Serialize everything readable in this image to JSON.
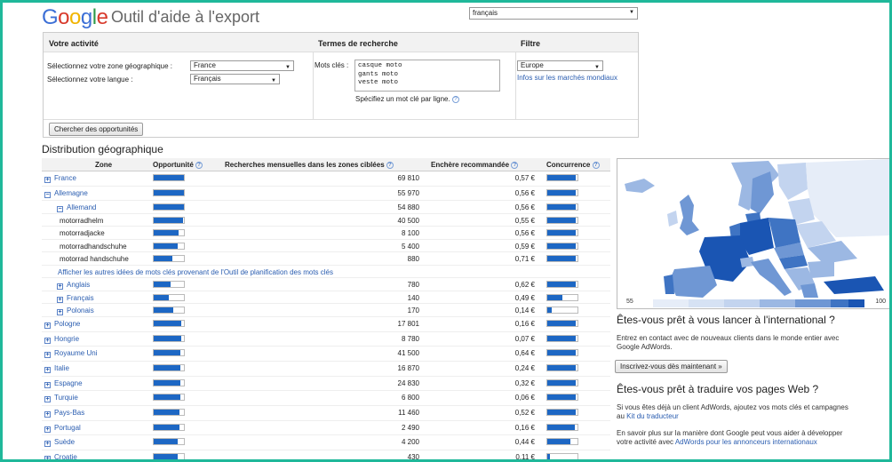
{
  "header": {
    "logo": {
      "G": "G",
      "o1": "o",
      "o2": "o",
      "g": "g",
      "l": "l",
      "e": "e"
    },
    "app_title": "Outil d'aide à l'export",
    "language_select": "français"
  },
  "form": {
    "col_activity": "Votre activité",
    "col_terms": "Termes de recherche",
    "col_filter": "Filtre",
    "zone_label": "Sélectionnez votre zone géographique :",
    "zone_value": "France",
    "lang_label": "Sélectionnez votre langue :",
    "lang_value": "Français",
    "keywords_label": "Mots clés :",
    "keywords": [
      "casque moto",
      "gants moto",
      "veste moto"
    ],
    "keywords_hint": "Spécifiez un mot clé par ligne.",
    "filter_value": "Europe",
    "filter_link": "Infos sur les marchés mondiaux",
    "search_button": "Chercher des opportunités"
  },
  "section_title": "Distribution géographique",
  "table": {
    "headers": {
      "zone": "Zone",
      "opportunity": "Opportunité",
      "searches": "Recherches mensuelles dans les zones ciblées",
      "bid": "Enchère recommandée",
      "competition": "Concurrence"
    },
    "more_ideas_link": "Afficher les autres idées de mots clés provenant de l'Outil de planification des mots clés",
    "rows": [
      {
        "type": "country",
        "zone": "France",
        "toggle": "+",
        "opp": 1.0,
        "searches": "69 810",
        "bid": "0,57 €",
        "comp": 0.95
      },
      {
        "type": "country",
        "zone": "Allemagne",
        "toggle": "−",
        "opp": 1.0,
        "searches": "55 970",
        "bid": "0,56 €",
        "comp": 0.95
      },
      {
        "type": "language",
        "zone": "Allemand",
        "toggle": "−",
        "opp": 1.0,
        "searches": "54 880",
        "bid": "0,56 €",
        "comp": 0.95
      },
      {
        "type": "keyword",
        "zone": "motorradhelm",
        "opp": 0.97,
        "searches": "40 500",
        "bid": "0,55 €",
        "comp": 0.95
      },
      {
        "type": "keyword",
        "zone": "motorradjacke",
        "opp": 0.82,
        "searches": "8 100",
        "bid": "0,56 €",
        "comp": 0.95
      },
      {
        "type": "keyword",
        "zone": "motorradhandschuhe",
        "opp": 0.78,
        "searches": "5 400",
        "bid": "0,59 €",
        "comp": 0.95
      },
      {
        "type": "keyword",
        "zone": "motorrad handschuhe",
        "opp": 0.62,
        "searches": "880",
        "bid": "0,71 €",
        "comp": 0.95
      },
      {
        "type": "link"
      },
      {
        "type": "language",
        "zone": "Anglais",
        "toggle": "+",
        "opp": 0.55,
        "searches": "780",
        "bid": "0,62 €",
        "comp": 0.95
      },
      {
        "type": "language",
        "zone": "Français",
        "toggle": "+",
        "opp": 0.5,
        "searches": "140",
        "bid": "0,49 €",
        "comp": 0.5
      },
      {
        "type": "language",
        "zone": "Polonais",
        "toggle": "+",
        "opp": 0.65,
        "searches": "170",
        "bid": "0,14 €",
        "comp": 0.15
      },
      {
        "type": "country",
        "zone": "Pologne",
        "toggle": "+",
        "opp": 0.92,
        "searches": "17 801",
        "bid": "0,16 €",
        "comp": 0.95
      },
      {
        "type": "country",
        "zone": "Hongrie",
        "toggle": "+",
        "opp": 0.92,
        "searches": "8 780",
        "bid": "0,07 €",
        "comp": 0.95
      },
      {
        "type": "country",
        "zone": "Royaume Uni",
        "toggle": "+",
        "opp": 0.88,
        "searches": "41 500",
        "bid": "0,64 €",
        "comp": 0.95
      },
      {
        "type": "country",
        "zone": "Italie",
        "toggle": "+",
        "opp": 0.88,
        "searches": "16 870",
        "bid": "0,24 €",
        "comp": 0.95
      },
      {
        "type": "country",
        "zone": "Espagne",
        "toggle": "+",
        "opp": 0.88,
        "searches": "24 830",
        "bid": "0,32 €",
        "comp": 0.95
      },
      {
        "type": "country",
        "zone": "Turquie",
        "toggle": "+",
        "opp": 0.88,
        "searches": "6 800",
        "bid": "0,06 €",
        "comp": 0.95
      },
      {
        "type": "country",
        "zone": "Pays-Bas",
        "toggle": "+",
        "opp": 0.85,
        "searches": "11 460",
        "bid": "0,52 €",
        "comp": 0.95
      },
      {
        "type": "country",
        "zone": "Portugal",
        "toggle": "+",
        "opp": 0.85,
        "searches": "2 490",
        "bid": "0,16 €",
        "comp": 0.9
      },
      {
        "type": "country",
        "zone": "Suède",
        "toggle": "+",
        "opp": 0.8,
        "searches": "4 200",
        "bid": "0,44 €",
        "comp": 0.75
      },
      {
        "type": "country",
        "zone": "Croatie",
        "toggle": "+",
        "opp": 0.8,
        "searches": "430",
        "bid": "0,11 €",
        "comp": 0.1
      }
    ]
  },
  "map": {
    "legend_min": "55",
    "legend_max": "100",
    "colors": [
      "#e6edf8",
      "#c3d4ef",
      "#9cb8e3",
      "#6f97d4",
      "#3f74c3",
      "#1a55b3"
    ]
  },
  "side": {
    "intl_title": "Êtes-vous prêt à vous lancer à l'international ?",
    "intl_text": "Entrez en contact avec de nouveaux clients dans le monde entier avec Google AdWords.",
    "intl_button": "Inscrivez-vous dès maintenant »",
    "translate_title": "Êtes-vous prêt à traduire vos pages Web ?",
    "translate_text_1": "Si vous êtes déjà un client AdWords, ajoutez vos mots clés et campagnes au",
    "translate_link_1": "Kit du traducteur",
    "translate_text_2": "En savoir plus sur la manière dont Google peut vous aider à développer votre activité avec",
    "translate_link_2": "AdWords pour les annonceurs internationaux"
  }
}
